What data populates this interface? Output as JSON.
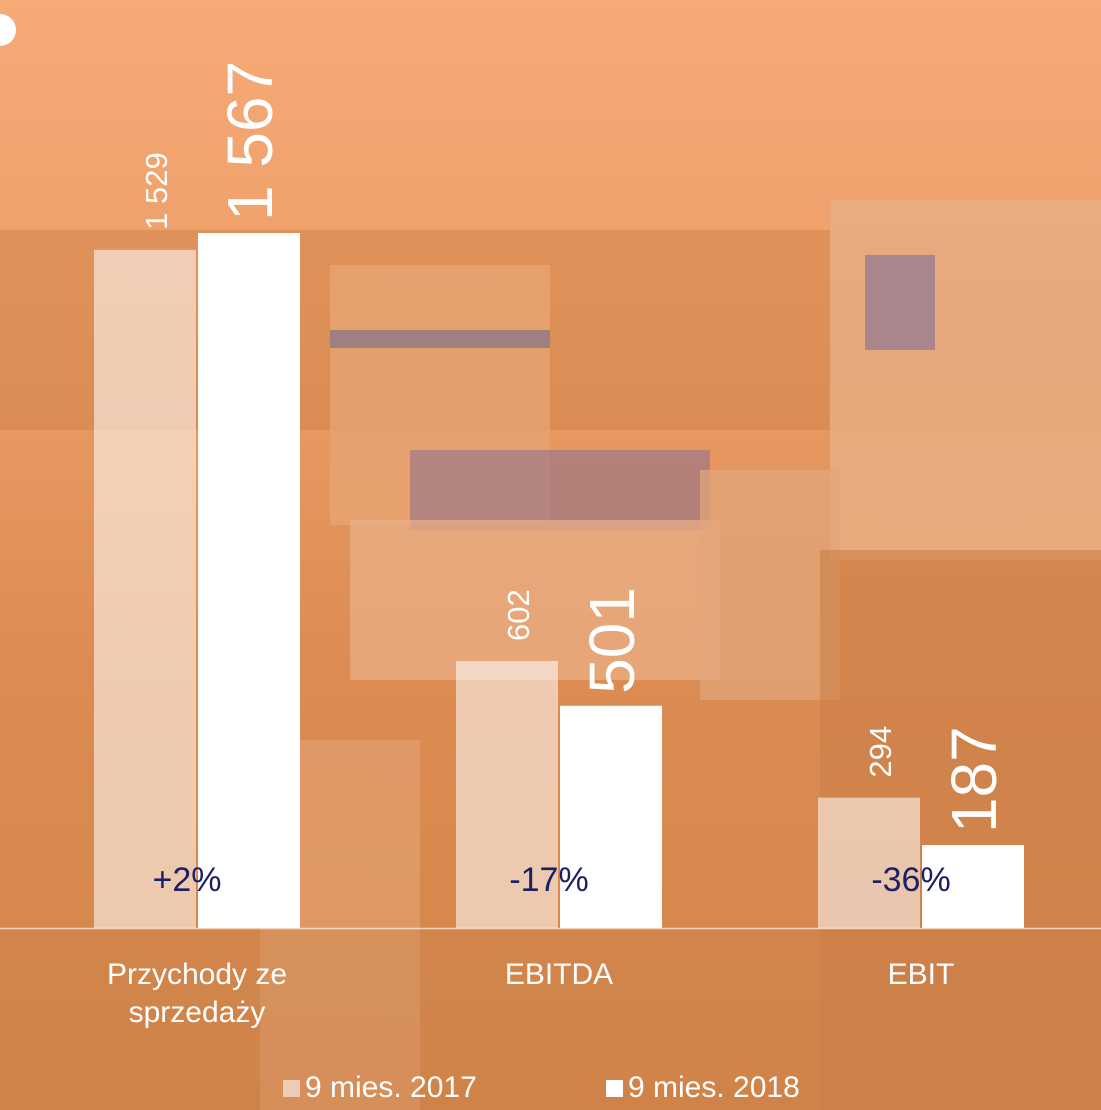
{
  "chart_data": {
    "type": "bar",
    "categories": [
      "Przychody ze sprzedaży",
      "EBITDA",
      "EBIT"
    ],
    "series": [
      {
        "name": "9 mies. 2017",
        "color": "rgba(255,255,255,0.55)",
        "values": [
          1529,
          602,
          294
        ],
        "value_labels": [
          "1 529",
          "602",
          "294"
        ]
      },
      {
        "name": "9 mies. 2018",
        "color": "#ffffff",
        "values": [
          1567,
          501,
          187
        ],
        "value_labels": [
          "1 567",
          "501",
          "187"
        ]
      }
    ],
    "changes": [
      "+2%",
      "-17%",
      "-36%"
    ]
  }
}
